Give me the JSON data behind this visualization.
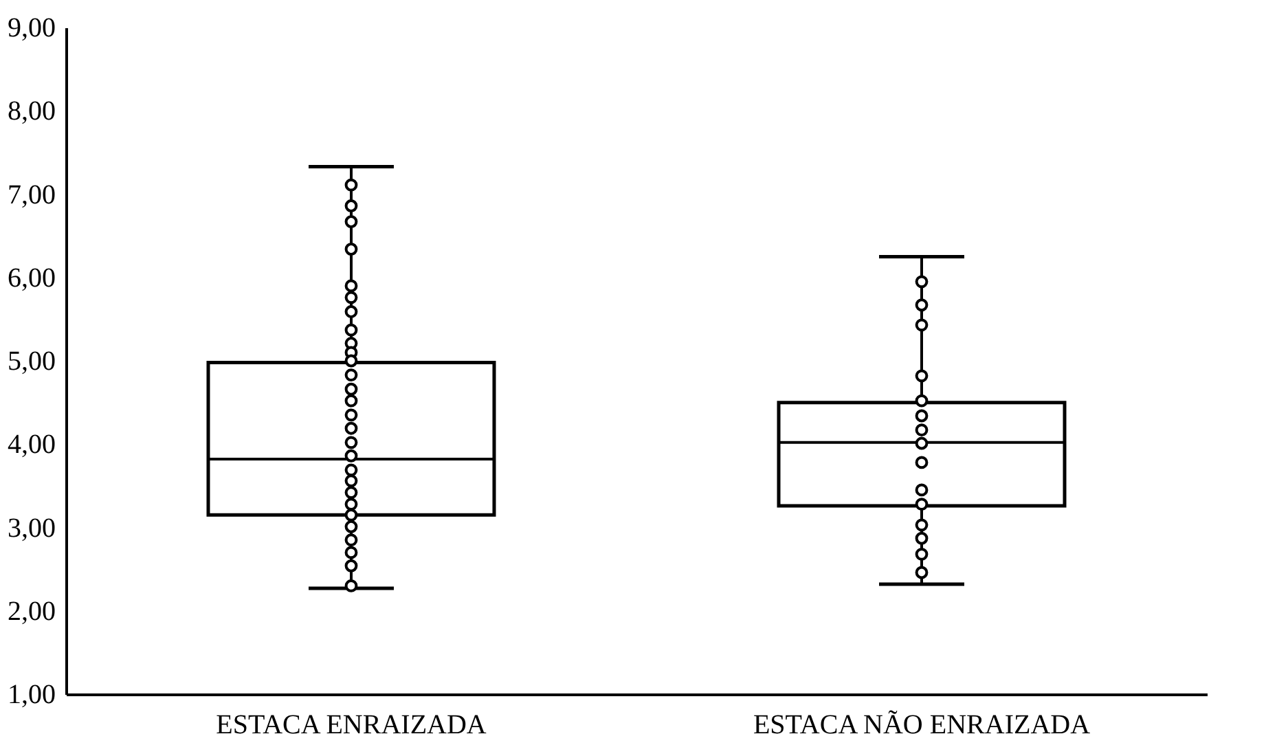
{
  "chart_data": {
    "type": "box",
    "categories": [
      "ESTACA ENRAIZADA",
      "ESTACA NÃO ENRAIZADA"
    ],
    "boxes": [
      {
        "low": 2.27,
        "q1": 3.15,
        "median": 3.82,
        "q3": 4.98,
        "high": 7.33
      },
      {
        "low": 2.32,
        "q1": 3.26,
        "median": 4.02,
        "q3": 4.5,
        "high": 6.25
      }
    ],
    "series": [
      {
        "type": "scatter",
        "color": "#000000",
        "x": [
          "ESTACA ENRAIZADA",
          "ESTACA ENRAIZADA",
          "ESTACA ENRAIZADA",
          "ESTACA ENRAIZADA",
          "ESTACA ENRAIZADA",
          "ESTACA ENRAIZADA",
          "ESTACA ENRAIZADA",
          "ESTACA ENRAIZADA",
          "ESTACA ENRAIZADA",
          "ESTACA ENRAIZADA",
          "ESTACA ENRAIZADA",
          "ESTACA ENRAIZADA",
          "ESTACA ENRAIZADA",
          "ESTACA ENRAIZADA",
          "ESTACA ENRAIZADA",
          "ESTACA ENRAIZADA",
          "ESTACA ENRAIZADA",
          "ESTACA ENRAIZADA",
          "ESTACA ENRAIZADA",
          "ESTACA ENRAIZADA",
          "ESTACA ENRAIZADA",
          "ESTACA ENRAIZADA",
          "ESTACA ENRAIZADA",
          "ESTACA ENRAIZADA",
          "ESTACA ENRAIZADA",
          "ESTACA ENRAIZADA",
          "ESTACA ENRAIZADA",
          "ESTACA ENRAIZADA",
          "ESTACA NÃO ENRAIZADA",
          "ESTACA NÃO ENRAIZADA",
          "ESTACA NÃO ENRAIZADA",
          "ESTACA NÃO ENRAIZADA",
          "ESTACA NÃO ENRAIZADA",
          "ESTACA NÃO ENRAIZADA",
          "ESTACA NÃO ENRAIZADA",
          "ESTACA NÃO ENRAIZADA",
          "ESTACA NÃO ENRAIZADA",
          "ESTACA NÃO ENRAIZADA",
          "ESTACA NÃO ENRAIZADA",
          "ESTACA NÃO ENRAIZADA",
          "ESTACA NÃO ENRAIZADA",
          "ESTACA NÃO ENRAIZADA",
          "ESTACA NÃO ENRAIZADA"
        ],
        "values": [
          7.11,
          6.86,
          6.67,
          6.34,
          5.9,
          5.76,
          5.59,
          5.37,
          5.21,
          5.1,
          5.0,
          4.83,
          4.66,
          4.52,
          4.35,
          4.19,
          4.02,
          3.86,
          3.69,
          3.56,
          3.42,
          3.28,
          3.15,
          3.01,
          2.85,
          2.7,
          2.54,
          2.3,
          5.95,
          5.67,
          5.43,
          4.82,
          4.52,
          4.34,
          4.17,
          4.01,
          3.78,
          3.45,
          3.28,
          3.03,
          2.87,
          2.68,
          2.46
        ]
      }
    ],
    "ylim": [
      1,
      9
    ],
    "yticks": [
      {
        "value": 1,
        "label": "1,00"
      },
      {
        "value": 2,
        "label": "2,00"
      },
      {
        "value": 3,
        "label": "3,00"
      },
      {
        "value": 4,
        "label": "4,00"
      },
      {
        "value": 5,
        "label": "5,00"
      },
      {
        "value": 6,
        "label": "6,00"
      },
      {
        "value": 7,
        "label": "7,00"
      },
      {
        "value": 8,
        "label": "8,00"
      },
      {
        "value": 9,
        "label": "9,00"
      }
    ],
    "grid": false,
    "marker": "circle"
  }
}
